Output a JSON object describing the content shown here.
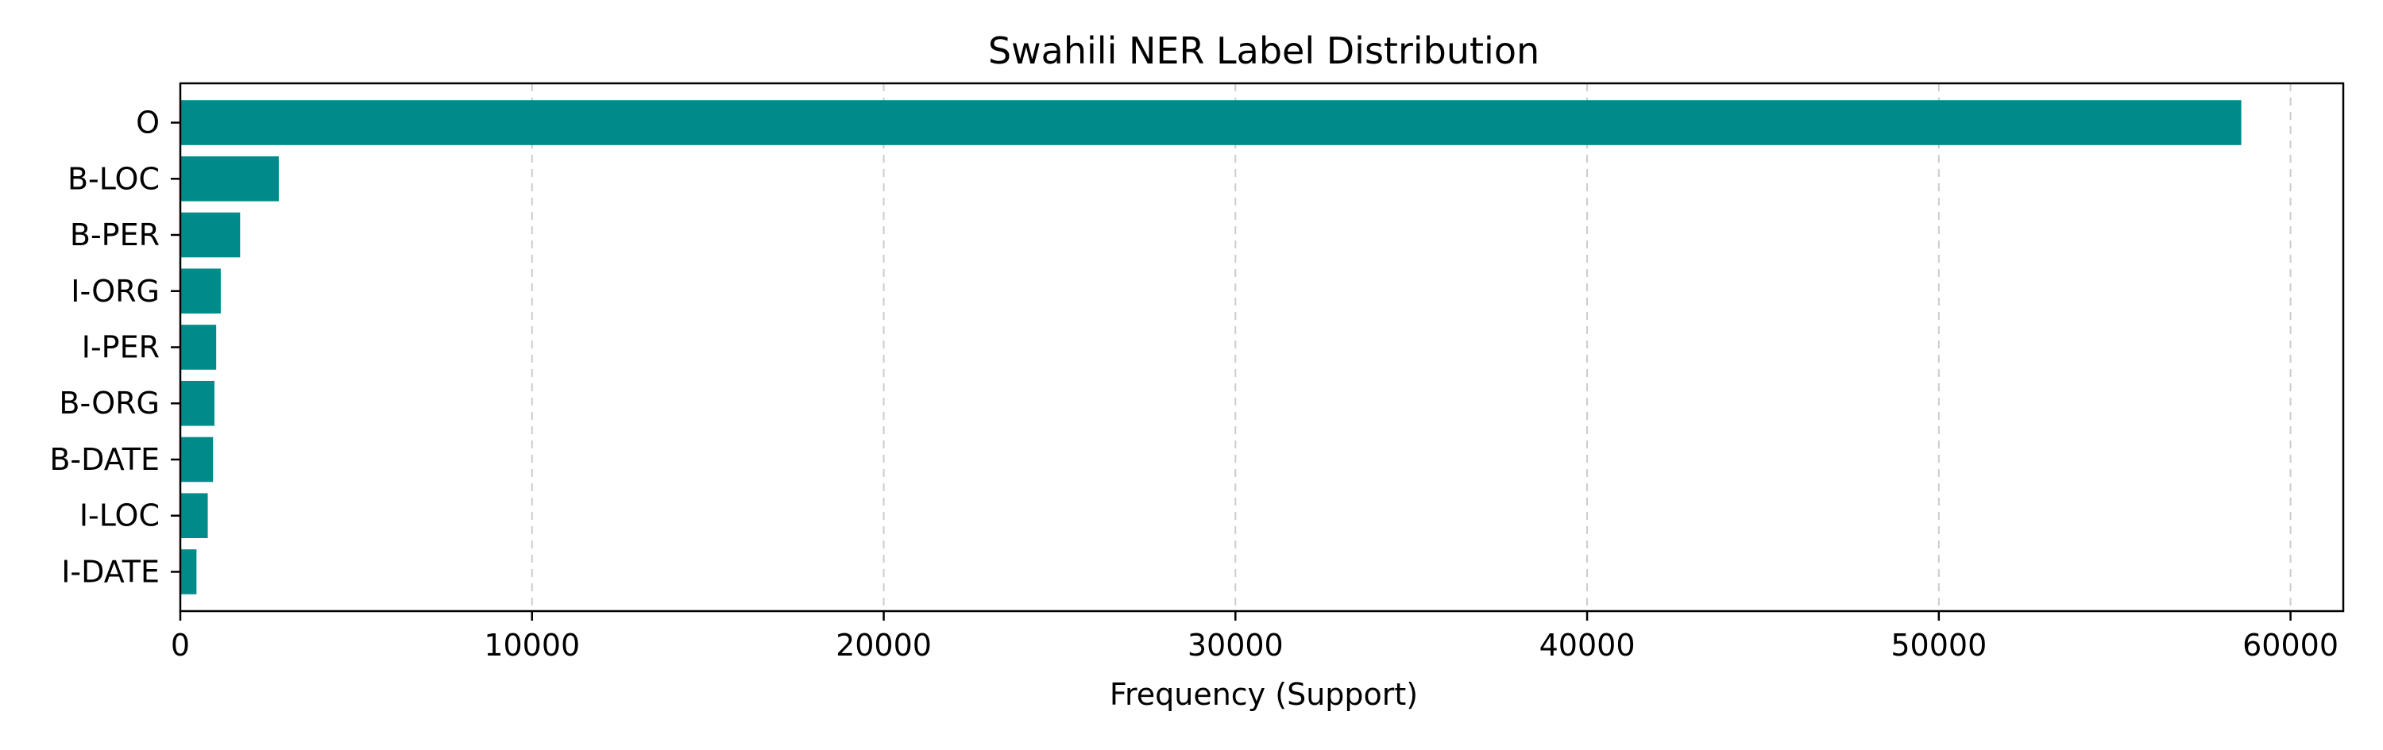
{
  "chart_data": {
    "type": "bar",
    "orientation": "horizontal",
    "title": "Swahili NER Label Distribution",
    "xlabel": "Frequency (Support)",
    "ylabel": "",
    "categories": [
      "O",
      "B-LOC",
      "B-PER",
      "I-ORG",
      "I-PER",
      "B-ORG",
      "B-DATE",
      "I-LOC",
      "I-DATE"
    ],
    "values": [
      58600,
      2800,
      1700,
      1150,
      1020,
      970,
      930,
      780,
      460
    ],
    "xlim": [
      0,
      61500
    ],
    "xticks": [
      0,
      10000,
      20000,
      30000,
      40000,
      50000,
      60000
    ],
    "grid": "x, dashed",
    "bar_color": "#008b8b",
    "legend": "none"
  }
}
